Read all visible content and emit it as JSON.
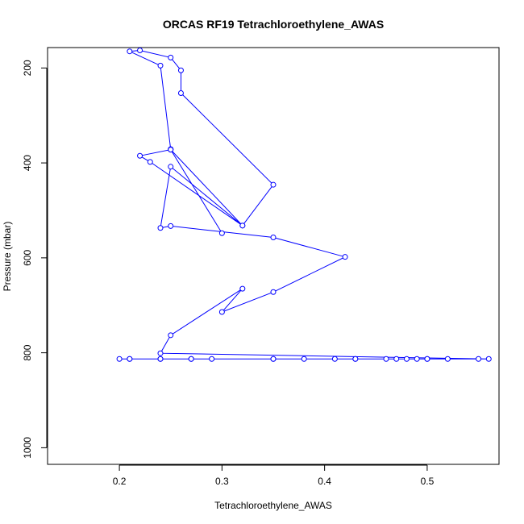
{
  "chart_data": {
    "type": "line",
    "title": "ORCAS RF19 Tetrachloroethylene_AWAS",
    "xlabel": "Tetrachloroethylene_AWAS",
    "ylabel": "Pressure (mbar)",
    "xlim": [
      0.13,
      0.57
    ],
    "ylim": [
      1035,
      157
    ],
    "y_reversed": true,
    "xticks": [
      0.2,
      0.3,
      0.4,
      0.5
    ],
    "yticks": [
      200,
      400,
      600,
      800,
      1000
    ],
    "grid": false,
    "legend": "none",
    "marker": "open-circle",
    "series_color": "#0000ff",
    "series": [
      {
        "x": [
          0.2,
          0.21,
          0.21,
          0.24,
          0.24,
          0.27,
          0.27,
          0.29,
          0.35,
          0.35,
          0.38,
          0.41,
          0.43,
          0.43,
          0.46,
          0.47,
          0.48,
          0.49,
          0.5,
          0.5,
          0.52,
          0.55,
          0.56,
          0.24,
          0.25,
          0.32,
          0.3,
          0.35,
          0.42,
          0.35,
          0.25,
          0.24,
          0.25,
          0.32,
          0.23,
          0.22,
          0.25,
          0.25,
          0.24,
          0.21,
          0.22,
          0.25,
          0.26,
          0.26,
          0.35,
          0.32,
          0.25,
          0.3
        ],
        "y": [
          813,
          813,
          813,
          813,
          813,
          813,
          813,
          813,
          813,
          813,
          813,
          813,
          813,
          813,
          813,
          813,
          813,
          813,
          813,
          813,
          813,
          813,
          813,
          801,
          763,
          665,
          714,
          672,
          598,
          557,
          533,
          537,
          408,
          532,
          398,
          385,
          372,
          371,
          195,
          165,
          163,
          178,
          205,
          253,
          446,
          532,
          372,
          548
        ]
      }
    ]
  }
}
